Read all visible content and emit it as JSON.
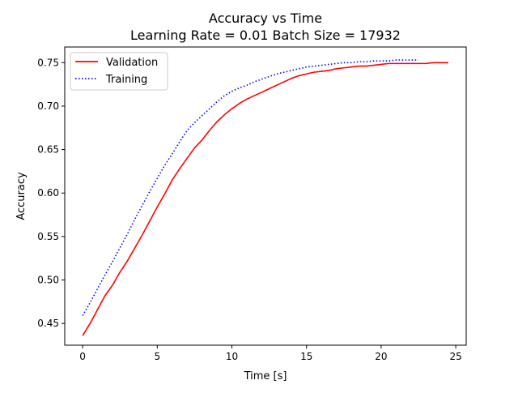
{
  "chart_data": {
    "type": "line",
    "title": "Accuracy vs Time",
    "subtitle": "Learning Rate = 0.01 Batch Size = 17932",
    "xlabel": "Time [s]",
    "ylabel": "Accuracy",
    "xlim": [
      -1.2,
      25.7
    ],
    "ylim": [
      0.425,
      0.768
    ],
    "xticks": [
      0,
      5,
      10,
      15,
      20,
      25
    ],
    "yticks": [
      0.45,
      0.5,
      0.55,
      0.6,
      0.65,
      0.7,
      0.75
    ],
    "xtick_labels": [
      "0",
      "5",
      "10",
      "15",
      "20",
      "25"
    ],
    "ytick_labels": [
      "0.45",
      "0.50",
      "0.55",
      "0.60",
      "0.65",
      "0.70",
      "0.75"
    ],
    "grid": false,
    "legend_position": "top-left",
    "series": [
      {
        "name": "Validation",
        "color": "#ff0000",
        "style": "solid",
        "x": [
          0,
          0.5,
          1,
          1.5,
          2,
          2.5,
          3,
          3.5,
          4,
          4.5,
          5,
          5.5,
          6,
          6.5,
          7,
          7.5,
          8,
          8.5,
          9,
          9.5,
          10,
          10.5,
          11,
          11.5,
          12,
          12.5,
          13,
          13.5,
          14,
          14.5,
          15,
          15.5,
          16,
          16.5,
          17,
          17.5,
          18,
          18.5,
          19,
          19.5,
          20,
          20.5,
          21,
          21.5,
          22,
          22.5,
          23,
          23.5,
          24,
          24.5
        ],
        "values": [
          0.436,
          0.45,
          0.466,
          0.482,
          0.494,
          0.509,
          0.522,
          0.537,
          0.552,
          0.568,
          0.584,
          0.599,
          0.615,
          0.628,
          0.64,
          0.652,
          0.661,
          0.672,
          0.682,
          0.69,
          0.697,
          0.703,
          0.708,
          0.712,
          0.716,
          0.72,
          0.724,
          0.728,
          0.732,
          0.735,
          0.737,
          0.739,
          0.74,
          0.741,
          0.743,
          0.744,
          0.745,
          0.746,
          0.746,
          0.747,
          0.748,
          0.749,
          0.749,
          0.749,
          0.749,
          0.749,
          0.749,
          0.75,
          0.75,
          0.75
        ]
      },
      {
        "name": "Training",
        "color": "#0000ff",
        "style": "dotted",
        "x": [
          0,
          0.5,
          1,
          1.5,
          2,
          2.5,
          3,
          3.5,
          4,
          4.5,
          5,
          5.5,
          6,
          6.5,
          7,
          7.5,
          8,
          8.5,
          9,
          9.5,
          10,
          10.5,
          11,
          11.5,
          12,
          12.5,
          13,
          13.5,
          14,
          14.5,
          15,
          15.5,
          16,
          16.5,
          17,
          17.5,
          18,
          18.5,
          19,
          19.5,
          20,
          20.5,
          21,
          21.5,
          22,
          22.5
        ],
        "values": [
          0.459,
          0.474,
          0.49,
          0.506,
          0.521,
          0.537,
          0.553,
          0.57,
          0.586,
          0.602,
          0.617,
          0.632,
          0.645,
          0.659,
          0.672,
          0.681,
          0.689,
          0.697,
          0.705,
          0.712,
          0.717,
          0.721,
          0.724,
          0.728,
          0.731,
          0.734,
          0.737,
          0.739,
          0.741,
          0.743,
          0.745,
          0.746,
          0.747,
          0.748,
          0.749,
          0.75,
          0.75,
          0.751,
          0.751,
          0.752,
          0.752,
          0.752,
          0.753,
          0.753,
          0.753,
          0.753
        ]
      }
    ]
  }
}
